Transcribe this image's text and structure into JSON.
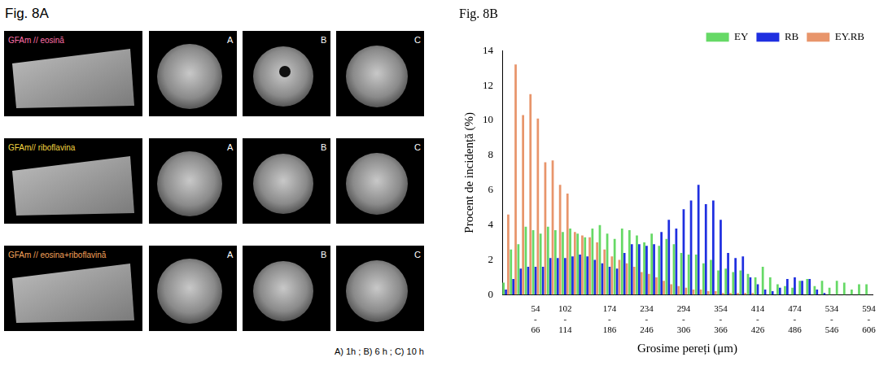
{
  "figure": {
    "title": "Fig. 8A",
    "rows": [
      {
        "label": "GFAm // eosină",
        "color": "#ff6fa8",
        "views": [
          "A",
          "B",
          "C"
        ]
      },
      {
        "label": "GFAm// riboflavina",
        "color": "#f2d640",
        "views": [
          "A",
          "B",
          "C"
        ]
      },
      {
        "label": "GFAm // eosina+riboflavină",
        "color": "#f5a25a",
        "views": [
          "A",
          "B",
          "C"
        ]
      }
    ],
    "caption": "A) 1h ; B) 6 h ; C) 10 h"
  },
  "chart_data": {
    "type": "bar",
    "title": "Fig. 8B",
    "x_label": "Grosime pereți (μm)",
    "y_label": "Procent de incidență (%)",
    "categories": [
      null,
      null,
      null,
      null,
      "54-66",
      null,
      null,
      null,
      "102-114",
      null,
      null,
      null,
      null,
      null,
      "174-186",
      null,
      null,
      null,
      null,
      "234-246",
      null,
      null,
      null,
      null,
      "294-306",
      null,
      null,
      null,
      null,
      "354-366",
      null,
      null,
      null,
      null,
      "414-426",
      null,
      null,
      null,
      null,
      "474-486",
      null,
      null,
      null,
      null,
      "534-546",
      null,
      null,
      null,
      null,
      "594-606"
    ],
    "series": [
      {
        "name": "EY",
        "color": "#66d966",
        "values": [
          0.7,
          2.6,
          2.9,
          3.9,
          3.7,
          3.5,
          3.9,
          3.7,
          3.6,
          3.8,
          3.5,
          3.3,
          3.8,
          4.0,
          3.5,
          3.2,
          3.8,
          3.7,
          3.4,
          3.0,
          3.5,
          2.8,
          3.2,
          2.9,
          2.4,
          2.3,
          2.3,
          1.8,
          2.0,
          1.4,
          1.5,
          1.3,
          1.4,
          1.2,
          1.0,
          1.6,
          1.0,
          0.6,
          0.5,
          0.4,
          0.8,
          0.9,
          0.5,
          0.8,
          0.4,
          0.8,
          0.7,
          0.3,
          0.6,
          0.6
        ]
      },
      {
        "name": "RB",
        "color": "#1f2fe0",
        "values": [
          0.3,
          0.9,
          1.5,
          1.6,
          1.6,
          1.6,
          2.1,
          2.1,
          2.1,
          2.2,
          2.3,
          2.2,
          2.0,
          1.8,
          1.6,
          1.5,
          2.4,
          2.9,
          2.9,
          2.8,
          2.9,
          3.6,
          4.3,
          3.8,
          4.9,
          5.4,
          6.3,
          5.2,
          5.4,
          4.3,
          2.4,
          2.1,
          2.2,
          1.0,
          0.6,
          0.3,
          0.2,
          0.4,
          0.9,
          1.0,
          0.8,
          0.9,
          0.3,
          0.1,
          0,
          0,
          0,
          0,
          0,
          0
        ]
      },
      {
        "name": "EY.RB",
        "color": "#e8956b",
        "values": [
          4.6,
          13.2,
          10.3,
          11.5,
          10.1,
          7.6,
          7.7,
          6.3,
          5.8,
          3.6,
          3.4,
          3.3,
          3.0,
          2.6,
          2.2,
          2.0,
          1.8,
          1.6,
          1.3,
          1.2,
          1.0,
          0.8,
          0.6,
          0.5,
          0.4,
          0.3,
          0.3,
          0.2,
          0.2,
          0.1,
          0.1,
          0.1,
          0.1,
          0.1,
          0,
          0,
          0,
          0,
          0,
          0,
          0,
          0,
          0,
          0,
          0,
          0,
          0,
          0,
          0,
          0
        ]
      }
    ],
    "ylim": [
      0,
      14
    ],
    "yticks": [
      0,
      2,
      4,
      6,
      8,
      10,
      12,
      14
    ],
    "grid": false,
    "legend": "top-right"
  }
}
